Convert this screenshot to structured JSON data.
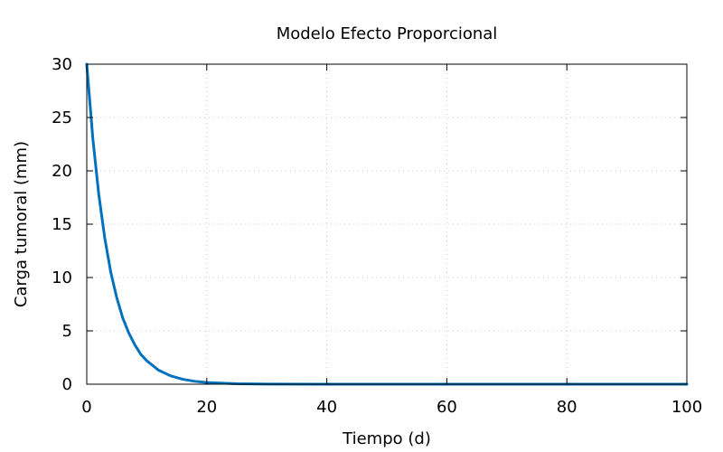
{
  "chart_data": {
    "type": "line",
    "title": "Modelo Efecto Proporcional",
    "xlabel": "Tiempo (d)",
    "ylabel": "Carga tumoral (mm)",
    "xlim": [
      0,
      100
    ],
    "ylim": [
      0,
      30
    ],
    "xticks": [
      "0",
      "20",
      "40",
      "60",
      "80",
      "100"
    ],
    "yticks": [
      "0",
      "5",
      "10",
      "15",
      "20",
      "25",
      "30"
    ],
    "grid": true,
    "legend": "none",
    "series": [
      {
        "color": "#0072bd",
        "x": [
          0,
          1,
          2,
          3,
          4,
          5,
          6,
          7,
          8,
          9,
          10,
          12,
          14,
          16,
          18,
          20,
          25,
          30,
          40,
          50,
          60,
          70,
          80,
          90,
          100
        ],
        "y": [
          30,
          23.1,
          17.8,
          13.7,
          10.5,
          8.1,
          6.2,
          4.8,
          3.7,
          2.8,
          2.2,
          1.3,
          0.78,
          0.46,
          0.27,
          0.16,
          0.04,
          0.01,
          0,
          0,
          0,
          0,
          0,
          0,
          0
        ]
      }
    ]
  }
}
